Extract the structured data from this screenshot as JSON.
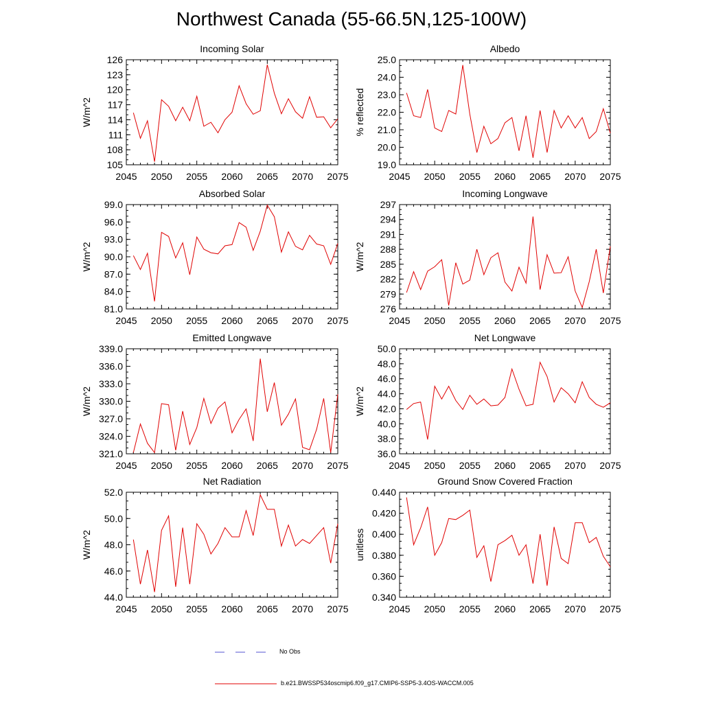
{
  "page_title": "Northwest Canada (55-66.5N,125-100W)",
  "legend": {
    "obs_label": "No Obs",
    "obs_color": "#5050d0",
    "model_label": "b.e21.BWSSP534oscmip6.f09_g17.CMIP6-SSP5-3.4OS-WACCM.005",
    "model_color": "#e00000"
  },
  "chart_data": [
    {
      "type": "line",
      "title": "Incoming Solar",
      "xlabel": "",
      "ylabel": "W/m^2",
      "xlim": [
        2045,
        2075
      ],
      "ylim": [
        105,
        126
      ],
      "xticks": [
        "2045",
        "2050",
        "2055",
        "2060",
        "2065",
        "2070",
        "2075"
      ],
      "yticks": [
        "105",
        "108",
        "111",
        "114",
        "117",
        "120",
        "123",
        "126"
      ],
      "series": [
        {
          "name": "b.e21.BWSSP534oscmip6.f09_g17.CMIP6-SSP5-3.4OS-WACCM.005",
          "x": [
            2046,
            2047,
            2048,
            2049,
            2050,
            2051,
            2052,
            2053,
            2054,
            2055,
            2056,
            2057,
            2058,
            2059,
            2060,
            2061,
            2062,
            2063,
            2064,
            2065,
            2066,
            2067,
            2068,
            2069,
            2070,
            2071,
            2072,
            2073,
            2074,
            2075
          ],
          "values": [
            115.4,
            110.3,
            113.8,
            105.6,
            118.0,
            116.7,
            113.8,
            116.5,
            113.8,
            118.7,
            112.7,
            113.5,
            111.4,
            114.0,
            115.5,
            120.8,
            117.2,
            115.1,
            115.8,
            125.0,
            119.3,
            115.2,
            118.2,
            115.6,
            114.3,
            118.6,
            114.5,
            114.6,
            112.4,
            114.2
          ]
        }
      ]
    },
    {
      "type": "line",
      "title": "Albedo",
      "xlabel": "",
      "ylabel": "% reflected",
      "xlim": [
        2045,
        2075
      ],
      "ylim": [
        19.0,
        25.0
      ],
      "xticks": [
        "2045",
        "2050",
        "2055",
        "2060",
        "2065",
        "2070",
        "2075"
      ],
      "yticks": [
        "19.0",
        "20.0",
        "21.0",
        "22.0",
        "23.0",
        "24.0",
        "25.0"
      ],
      "series": [
        {
          "name": "b.e21.BWSSP534oscmip6.f09_g17.CMIP6-SSP5-3.4OS-WACCM.005",
          "x": [
            2046,
            2047,
            2048,
            2049,
            2050,
            2051,
            2052,
            2053,
            2054,
            2055,
            2056,
            2057,
            2058,
            2059,
            2060,
            2061,
            2062,
            2063,
            2064,
            2065,
            2066,
            2067,
            2068,
            2069,
            2070,
            2071,
            2072,
            2073,
            2074,
            2075
          ],
          "values": [
            23.1,
            21.8,
            21.7,
            23.3,
            21.1,
            20.9,
            22.1,
            21.9,
            24.7,
            21.9,
            19.7,
            21.2,
            20.2,
            20.5,
            21.4,
            21.7,
            19.8,
            21.8,
            19.4,
            22.1,
            19.7,
            22.1,
            21.1,
            21.8,
            21.1,
            21.7,
            20.5,
            20.9,
            22.2,
            20.8
          ]
        }
      ]
    },
    {
      "type": "line",
      "title": "Absorbed Solar",
      "xlabel": "",
      "ylabel": "W/m^2",
      "xlim": [
        2045,
        2075
      ],
      "ylim": [
        81.0,
        99.0
      ],
      "xticks": [
        "2045",
        "2050",
        "2055",
        "2060",
        "2065",
        "2070",
        "2075"
      ],
      "yticks": [
        "81.0",
        "84.0",
        "87.0",
        "90.0",
        "93.0",
        "96.0",
        "99.0"
      ],
      "series": [
        {
          "name": "b.e21.BWSSP534oscmip6.f09_g17.CMIP6-SSP5-3.4OS-WACCM.005",
          "x": [
            2046,
            2047,
            2048,
            2049,
            2050,
            2051,
            2052,
            2053,
            2054,
            2055,
            2056,
            2057,
            2058,
            2059,
            2060,
            2061,
            2062,
            2063,
            2064,
            2065,
            2066,
            2067,
            2068,
            2069,
            2070,
            2071,
            2072,
            2073,
            2074,
            2075
          ],
          "values": [
            90.2,
            87.8,
            90.6,
            82.3,
            94.2,
            93.5,
            89.8,
            92.4,
            86.9,
            93.4,
            91.3,
            90.7,
            90.5,
            91.9,
            92.1,
            95.9,
            95.1,
            91.1,
            94.4,
            98.9,
            96.9,
            90.8,
            94.3,
            91.8,
            91.2,
            93.7,
            92.2,
            91.9,
            88.7,
            92.3
          ]
        }
      ]
    },
    {
      "type": "line",
      "title": "Incoming Longwave",
      "xlabel": "",
      "ylabel": "W/m^2",
      "xlim": [
        2045,
        2075
      ],
      "ylim": [
        276,
        297
      ],
      "xticks": [
        "2045",
        "2050",
        "2055",
        "2060",
        "2065",
        "2070",
        "2075"
      ],
      "yticks": [
        "276",
        "279",
        "282",
        "285",
        "288",
        "291",
        "294",
        "297"
      ],
      "series": [
        {
          "name": "b.e21.BWSSP534oscmip6.f09_g17.CMIP6-SSP5-3.4OS-WACCM.005",
          "x": [
            2046,
            2047,
            2048,
            2049,
            2050,
            2051,
            2052,
            2053,
            2054,
            2055,
            2056,
            2057,
            2058,
            2059,
            2060,
            2061,
            2062,
            2063,
            2064,
            2065,
            2066,
            2067,
            2068,
            2069,
            2070,
            2071,
            2072,
            2073,
            2074,
            2075
          ],
          "values": [
            279.3,
            283.5,
            279.9,
            283.6,
            284.5,
            285.9,
            276.7,
            285.3,
            281.0,
            281.8,
            288.0,
            282.9,
            286.3,
            287.3,
            281.4,
            279.6,
            284.4,
            281.2,
            294.6,
            279.9,
            286.9,
            283.2,
            283.3,
            286.5,
            279.6,
            276.3,
            281.5,
            288.0,
            279.2,
            288.6
          ]
        }
      ]
    },
    {
      "type": "line",
      "title": "Emitted Longwave",
      "xlabel": "",
      "ylabel": "W/m^2",
      "xlim": [
        2045,
        2075
      ],
      "ylim": [
        321.0,
        339.0
      ],
      "xticks": [
        "2045",
        "2050",
        "2055",
        "2060",
        "2065",
        "2070",
        "2075"
      ],
      "yticks": [
        "321.0",
        "324.0",
        "327.0",
        "330.0",
        "333.0",
        "336.0",
        "339.0"
      ],
      "series": [
        {
          "name": "b.e21.BWSSP534oscmip6.f09_g17.CMIP6-SSP5-3.4OS-WACCM.005",
          "x": [
            2046,
            2047,
            2048,
            2049,
            2050,
            2051,
            2052,
            2053,
            2054,
            2055,
            2056,
            2057,
            2058,
            2059,
            2060,
            2061,
            2062,
            2063,
            2064,
            2065,
            2066,
            2067,
            2068,
            2069,
            2070,
            2071,
            2072,
            2073,
            2074,
            2075
          ],
          "values": [
            321.2,
            326.1,
            322.8,
            321.2,
            329.6,
            329.4,
            321.6,
            328.3,
            322.6,
            325.5,
            330.5,
            326.2,
            328.8,
            329.9,
            324.6,
            326.9,
            328.7,
            323.2,
            337.3,
            328.2,
            333.2,
            325.9,
            327.8,
            330.4,
            322.1,
            321.7,
            325.2,
            330.5,
            321.2,
            331.2
          ]
        }
      ]
    },
    {
      "type": "line",
      "title": "Net Longwave",
      "xlabel": "",
      "ylabel": "W/m^2",
      "xlim": [
        2045,
        2075
      ],
      "ylim": [
        36.0,
        50.0
      ],
      "xticks": [
        "2045",
        "2050",
        "2055",
        "2060",
        "2065",
        "2070",
        "2075"
      ],
      "yticks": [
        "36.0",
        "38.0",
        "40.0",
        "42.0",
        "44.0",
        "46.0",
        "48.0",
        "50.0"
      ],
      "series": [
        {
          "name": "b.e21.BWSSP534oscmip6.f09_g17.CMIP6-SSP5-3.4OS-WACCM.005",
          "x": [
            2046,
            2047,
            2048,
            2049,
            2050,
            2051,
            2052,
            2053,
            2054,
            2055,
            2056,
            2057,
            2058,
            2059,
            2060,
            2061,
            2062,
            2063,
            2064,
            2065,
            2066,
            2067,
            2068,
            2069,
            2070,
            2071,
            2072,
            2073,
            2074,
            2075
          ],
          "values": [
            41.9,
            42.7,
            42.9,
            37.9,
            45.0,
            43.3,
            45.0,
            43.1,
            41.9,
            43.8,
            42.6,
            43.3,
            42.4,
            42.5,
            43.5,
            47.3,
            44.6,
            42.4,
            42.6,
            48.2,
            46.3,
            42.9,
            44.8,
            44.0,
            42.8,
            45.6,
            43.5,
            42.6,
            42.2,
            42.8
          ]
        }
      ]
    },
    {
      "type": "line",
      "title": "Net Radiation",
      "xlabel": "",
      "ylabel": "W/m^2",
      "xlim": [
        2045,
        2075
      ],
      "ylim": [
        44.0,
        52.0
      ],
      "xticks": [
        "2045",
        "2050",
        "2055",
        "2060",
        "2065",
        "2070",
        "2075"
      ],
      "yticks": [
        "44.0",
        "46.0",
        "48.0",
        "50.0",
        "52.0"
      ],
      "series": [
        {
          "name": "b.e21.BWSSP534oscmip6.f09_g17.CMIP6-SSP5-3.4OS-WACCM.005",
          "x": [
            2046,
            2047,
            2048,
            2049,
            2050,
            2051,
            2052,
            2053,
            2054,
            2055,
            2056,
            2057,
            2058,
            2059,
            2060,
            2061,
            2062,
            2063,
            2064,
            2065,
            2066,
            2067,
            2068,
            2069,
            2070,
            2071,
            2072,
            2073,
            2074,
            2075
          ],
          "values": [
            48.4,
            45.0,
            47.6,
            44.4,
            49.1,
            50.2,
            44.8,
            49.3,
            45.0,
            49.6,
            48.8,
            47.3,
            48.1,
            49.3,
            48.6,
            48.6,
            50.6,
            48.7,
            51.8,
            50.7,
            50.7,
            47.9,
            49.5,
            47.9,
            48.4,
            48.1,
            48.7,
            49.3,
            46.6,
            49.6
          ]
        }
      ]
    },
    {
      "type": "line",
      "title": "Ground Snow Covered Fraction",
      "xlabel": "",
      "ylabel": "unitless",
      "xlim": [
        2045,
        2075
      ],
      "ylim": [
        0.34,
        0.44
      ],
      "xticks": [
        "2045",
        "2050",
        "2055",
        "2060",
        "2065",
        "2070",
        "2075"
      ],
      "yticks": [
        "0.340",
        "0.360",
        "0.380",
        "0.400",
        "0.420",
        "0.440"
      ],
      "series": [
        {
          "name": "b.e21.BWSSP534oscmip6.f09_g17.CMIP6-SSP5-3.4OS-WACCM.005",
          "x": [
            2046,
            2047,
            2048,
            2049,
            2050,
            2051,
            2052,
            2053,
            2054,
            2055,
            2056,
            2057,
            2058,
            2059,
            2060,
            2061,
            2062,
            2063,
            2064,
            2065,
            2066,
            2067,
            2068,
            2069,
            2070,
            2071,
            2072,
            2073,
            2074,
            2075
          ],
          "values": [
            0.435,
            0.39,
            0.406,
            0.426,
            0.38,
            0.392,
            0.415,
            0.414,
            0.418,
            0.423,
            0.378,
            0.389,
            0.355,
            0.39,
            0.394,
            0.399,
            0.38,
            0.39,
            0.353,
            0.4,
            0.351,
            0.407,
            0.377,
            0.372,
            0.411,
            0.411,
            0.392,
            0.397,
            0.379,
            0.369
          ]
        }
      ]
    }
  ]
}
